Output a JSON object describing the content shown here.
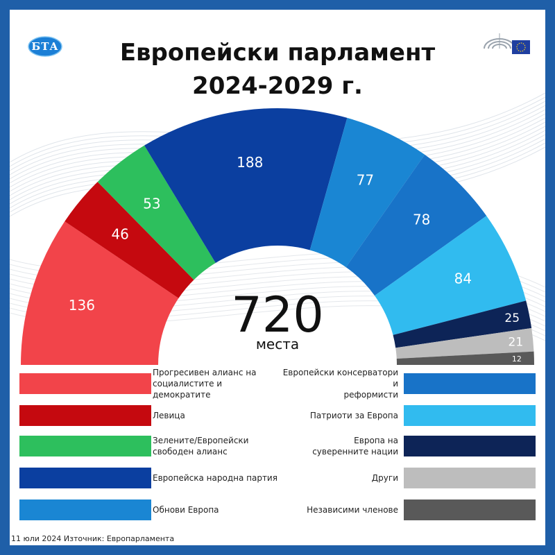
{
  "header": {
    "logo_text": "БТА",
    "title_line1": "Европейски парламент",
    "title_line2": "2024-2029 г.",
    "ep_icon": "european-parliament-eu-flag-icon"
  },
  "chart_data": {
    "type": "pie",
    "style": "semicircle-parliament",
    "title": "Европейски парламент 2024-2029 г.",
    "total": 720,
    "total_label": "места",
    "series": [
      {
        "name": "Прогресивен алианс на социалистите и демократите",
        "value": 136,
        "color": "#f2444a"
      },
      {
        "name": "Левица",
        "value": 46,
        "color": "#c5090f"
      },
      {
        "name": "Зелените/Европейски свободен алианс",
        "value": 53,
        "color": "#2dbf5d"
      },
      {
        "name": "Европейска народна партия",
        "value": 188,
        "color": "#0b3fa0"
      },
      {
        "name": "Обнови Европа",
        "value": 77,
        "color": "#1a86d3"
      },
      {
        "name": "Европейски консерватори и реформисти",
        "value": 78,
        "color": "#1873c8"
      },
      {
        "name": "Патриоти за Европа",
        "value": 84,
        "color": "#31bbef"
      },
      {
        "name": "Европа на суверенните нации",
        "value": 25,
        "color": "#0d2457"
      },
      {
        "name": "Други",
        "value": 21,
        "color": "#bdbdbd"
      },
      {
        "name": "Независими членове",
        "value": 12,
        "color": "#595959"
      }
    ]
  },
  "legend": {
    "left": [
      {
        "line1": "Прогресивен алианс на",
        "line2": "социалистите и демократите"
      },
      {
        "line1": "Левица",
        "line2": ""
      },
      {
        "line1": "Зелените/Европейски",
        "line2": "свободен алианс"
      },
      {
        "line1": "Европейска народна партия",
        "line2": ""
      },
      {
        "line1": "Обнови Европа",
        "line2": ""
      }
    ],
    "right": [
      {
        "line1": "Европейски консерватори и",
        "line2": "реформисти"
      },
      {
        "line1": "Патриоти за Европа",
        "line2": ""
      },
      {
        "line1": "Европа на",
        "line2": "суверенните нации"
      },
      {
        "line1": "Други",
        "line2": ""
      },
      {
        "line1": "Независими членове",
        "line2": ""
      }
    ]
  },
  "footer": {
    "text": "11 юли 2024  Източник: Европарламента"
  }
}
